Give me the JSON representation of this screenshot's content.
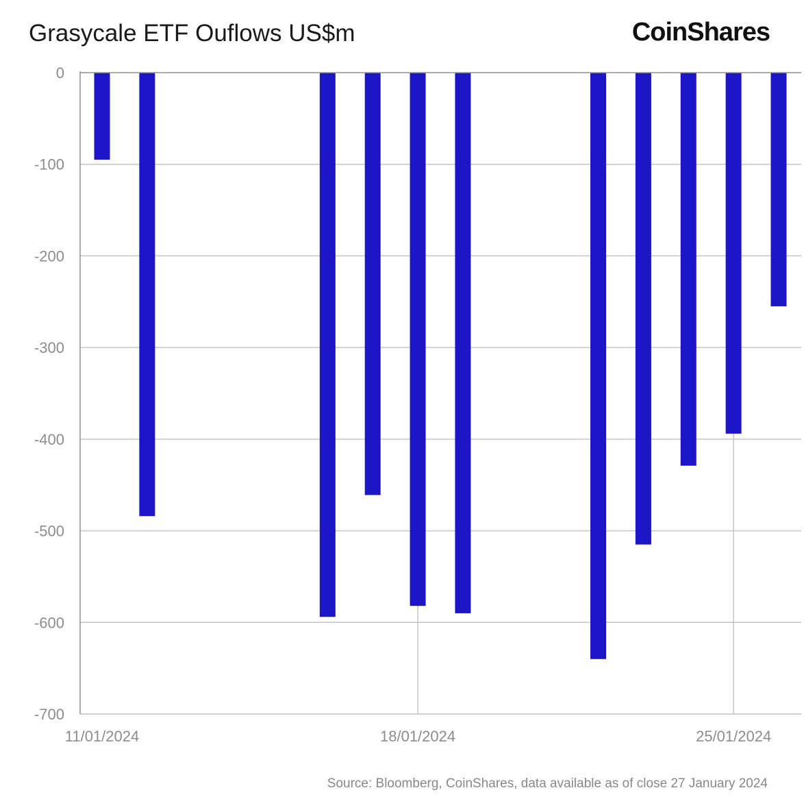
{
  "chart_data": {
    "type": "bar",
    "title": "Grasycale ETF Ouflows US$m",
    "brand": "CoinShares",
    "source": "Source: Bloomberg, CoinShares, data available as of close 27 January 2024",
    "xlabel": "",
    "ylabel": "",
    "ylim": [
      -700,
      0
    ],
    "yticks": [
      "0",
      "-100",
      "-200",
      "-300",
      "-400",
      "-500",
      "-600",
      "-700"
    ],
    "xlim": [
      "11/01/2024",
      "26/01/2024"
    ],
    "xticks": [
      {
        "date": "11/01/2024",
        "label": "11/01/2024"
      },
      {
        "date": "18/01/2024",
        "label": "18/01/2024"
      },
      {
        "date": "25/01/2024",
        "label": "25/01/2024"
      }
    ],
    "grid": true,
    "bar_color": "#1c16c8",
    "series": [
      {
        "points": [
          {
            "date": "11/01/2024",
            "value": -95
          },
          {
            "date": "12/01/2024",
            "value": -484
          },
          {
            "date": "16/01/2024",
            "value": -594
          },
          {
            "date": "17/01/2024",
            "value": -461
          },
          {
            "date": "18/01/2024",
            "value": -582
          },
          {
            "date": "19/01/2024",
            "value": -590
          },
          {
            "date": "22/01/2024",
            "value": -640
          },
          {
            "date": "23/01/2024",
            "value": -515
          },
          {
            "date": "24/01/2024",
            "value": -429
          },
          {
            "date": "25/01/2024",
            "value": -394
          },
          {
            "date": "26/01/2024",
            "value": -255
          }
        ]
      }
    ]
  }
}
